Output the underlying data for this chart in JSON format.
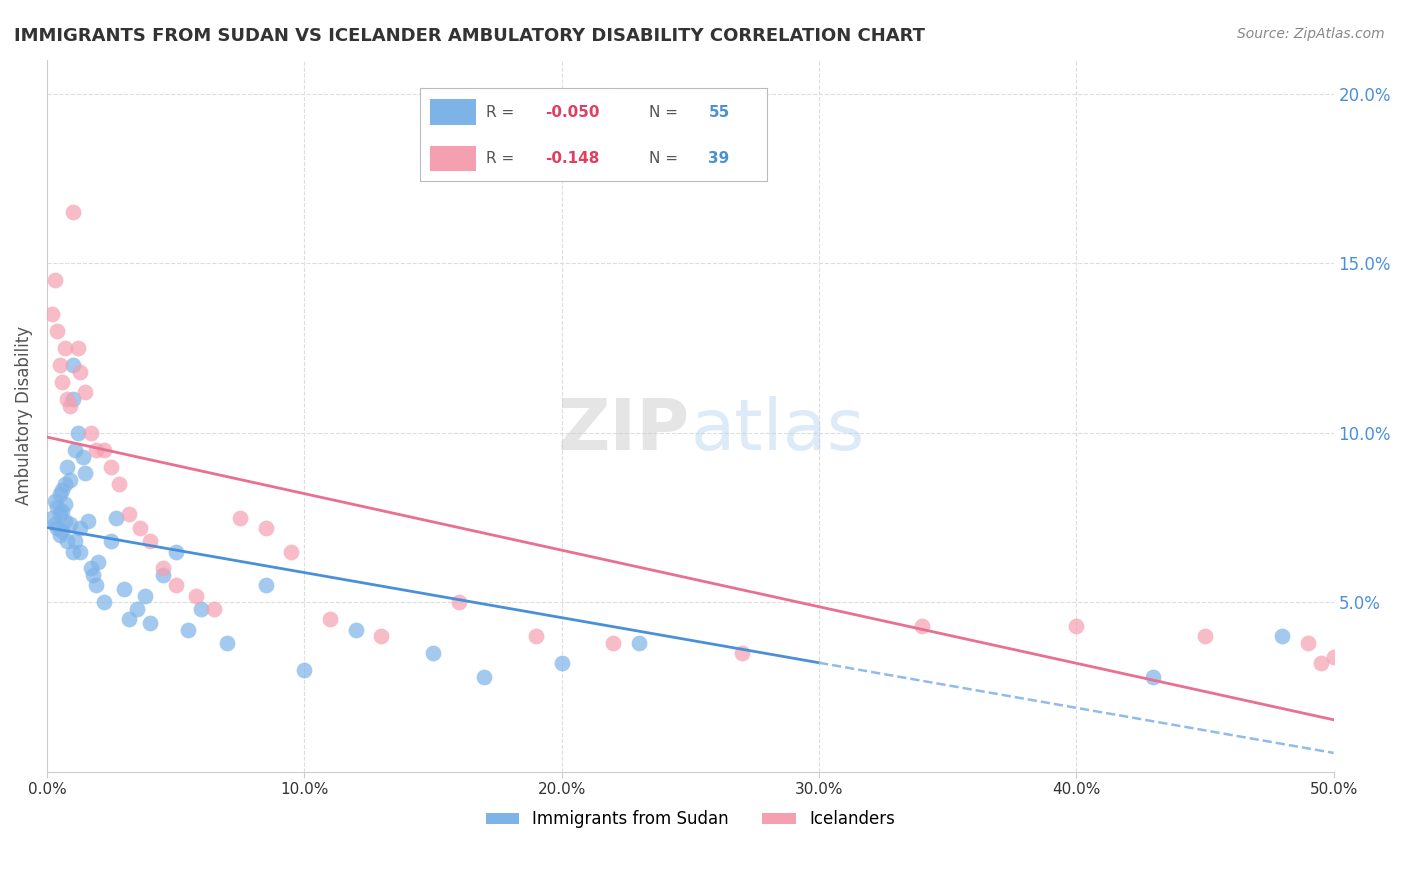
{
  "title": "IMMIGRANTS FROM SUDAN VS ICELANDER AMBULATORY DISABILITY CORRELATION CHART",
  "source": "Source: ZipAtlas.com",
  "ylabel": "Ambulatory Disability",
  "xlim": [
    0.0,
    0.5
  ],
  "ylim": [
    0.0,
    0.21
  ],
  "xtick_positions": [
    0.0,
    0.1,
    0.2,
    0.3,
    0.4,
    0.5
  ],
  "xtick_labels": [
    "0.0%",
    "10.0%",
    "20.0%",
    "30.0%",
    "40.0%",
    "50.0%"
  ],
  "yticks_right": [
    0.05,
    0.1,
    0.15,
    0.2
  ],
  "ytick_labels_right": [
    "5.0%",
    "10.0%",
    "15.0%",
    "20.0%"
  ],
  "legend_R1": "-0.050",
  "legend_N1": "55",
  "legend_R2": "-0.148",
  "legend_N2": "39",
  "color_blue": "#7eb3e8",
  "color_pink": "#f4a0b0",
  "color_blue_line": "#4a90d9",
  "color_pink_line": "#e87090",
  "color_blue_dashed": "#90bce8",
  "sudan_x": [
    0.002,
    0.003,
    0.003,
    0.004,
    0.004,
    0.005,
    0.005,
    0.005,
    0.006,
    0.006,
    0.006,
    0.007,
    0.007,
    0.007,
    0.008,
    0.008,
    0.009,
    0.009,
    0.01,
    0.01,
    0.01,
    0.011,
    0.011,
    0.012,
    0.013,
    0.013,
    0.014,
    0.015,
    0.016,
    0.017,
    0.018,
    0.019,
    0.02,
    0.022,
    0.025,
    0.027,
    0.03,
    0.032,
    0.035,
    0.038,
    0.04,
    0.045,
    0.05,
    0.055,
    0.06,
    0.07,
    0.085,
    0.1,
    0.12,
    0.15,
    0.17,
    0.2,
    0.23,
    0.43,
    0.48
  ],
  "sudan_y": [
    0.075,
    0.08,
    0.073,
    0.078,
    0.072,
    0.082,
    0.076,
    0.07,
    0.083,
    0.077,
    0.071,
    0.085,
    0.079,
    0.074,
    0.09,
    0.068,
    0.086,
    0.073,
    0.12,
    0.11,
    0.065,
    0.095,
    0.068,
    0.1,
    0.072,
    0.065,
    0.093,
    0.088,
    0.074,
    0.06,
    0.058,
    0.055,
    0.062,
    0.05,
    0.068,
    0.075,
    0.054,
    0.045,
    0.048,
    0.052,
    0.044,
    0.058,
    0.065,
    0.042,
    0.048,
    0.038,
    0.055,
    0.03,
    0.042,
    0.035,
    0.028,
    0.032,
    0.038,
    0.028,
    0.04
  ],
  "icelander_x": [
    0.002,
    0.003,
    0.004,
    0.005,
    0.006,
    0.007,
    0.008,
    0.009,
    0.01,
    0.012,
    0.013,
    0.015,
    0.017,
    0.019,
    0.022,
    0.025,
    0.028,
    0.032,
    0.036,
    0.04,
    0.045,
    0.05,
    0.058,
    0.065,
    0.075,
    0.085,
    0.095,
    0.11,
    0.13,
    0.16,
    0.19,
    0.22,
    0.27,
    0.34,
    0.4,
    0.45,
    0.49,
    0.495,
    0.5
  ],
  "icelander_y": [
    0.135,
    0.145,
    0.13,
    0.12,
    0.115,
    0.125,
    0.11,
    0.108,
    0.165,
    0.125,
    0.118,
    0.112,
    0.1,
    0.095,
    0.095,
    0.09,
    0.085,
    0.076,
    0.072,
    0.068,
    0.06,
    0.055,
    0.052,
    0.048,
    0.075,
    0.072,
    0.065,
    0.045,
    0.04,
    0.05,
    0.04,
    0.038,
    0.035,
    0.043,
    0.043,
    0.04,
    0.038,
    0.032,
    0.034
  ],
  "background_color": "#ffffff",
  "grid_color": "#dddddd",
  "watermark_text": "ZIPatlas",
  "watermark_color_ZIP": "#cccccc",
  "watermark_color_atlas": "#aaccee"
}
